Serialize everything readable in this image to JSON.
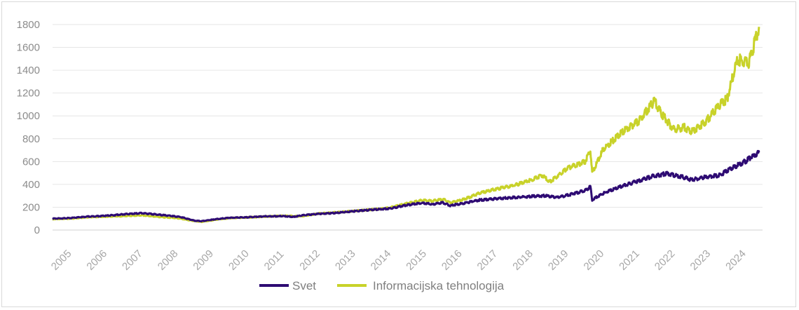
{
  "chart_data": {
    "type": "line",
    "title": "",
    "xlabel": "",
    "ylabel": "",
    "ylim": [
      0,
      1800
    ],
    "yticks": [
      0,
      200,
      400,
      600,
      800,
      1000,
      1200,
      1400,
      1600,
      1800
    ],
    "xlim": [
      2005,
      2025
    ],
    "xticks": [
      "2005",
      "2006",
      "2007",
      "2008",
      "2009",
      "2010",
      "2011",
      "2012",
      "2013",
      "2014",
      "2015",
      "2016",
      "2017",
      "2018",
      "2019",
      "2020",
      "2021",
      "2022",
      "2023",
      "2024"
    ],
    "grid": "horizontal",
    "legend_position": "bottom",
    "series": [
      {
        "name": "Svet",
        "color": "#2e0b73",
        "x": [
          2005.0,
          2005.5,
          2006.0,
          2006.5,
          2007.0,
          2007.5,
          2007.8,
          2008.2,
          2008.6,
          2009.0,
          2009.2,
          2009.6,
          2010.0,
          2010.5,
          2011.0,
          2011.5,
          2011.8,
          2012.0,
          2012.5,
          2013.0,
          2013.5,
          2014.0,
          2014.5,
          2015.0,
          2015.4,
          2015.7,
          2016.0,
          2016.2,
          2016.6,
          2017.0,
          2017.5,
          2018.0,
          2018.5,
          2018.9,
          2019.2,
          2019.5,
          2020.0,
          2020.15,
          2020.2,
          2020.5,
          2021.0,
          2021.5,
          2021.9,
          2022.3,
          2022.8,
          2023.0,
          2023.5,
          2023.8,
          2024.0,
          2024.5,
          2024.9
        ],
        "values": [
          100,
          105,
          118,
          125,
          138,
          148,
          140,
          128,
          115,
          82,
          78,
          95,
          108,
          112,
          120,
          122,
          115,
          128,
          142,
          150,
          165,
          178,
          188,
          220,
          238,
          225,
          240,
          215,
          235,
          262,
          275,
          285,
          295,
          300,
          285,
          305,
          345,
          380,
          265,
          320,
          380,
          430,
          470,
          495,
          460,
          440,
          470,
          480,
          520,
          600,
          680
        ]
      },
      {
        "name": "Informacijska tehnologija",
        "color": "#c8d22a",
        "x": [
          2005.0,
          2005.5,
          2006.0,
          2006.5,
          2007.0,
          2007.5,
          2008.0,
          2008.5,
          2009.0,
          2009.2,
          2009.6,
          2010.0,
          2010.5,
          2011.0,
          2011.5,
          2012.0,
          2012.5,
          2013.0,
          2013.5,
          2014.0,
          2014.5,
          2015.0,
          2015.4,
          2015.7,
          2016.0,
          2016.2,
          2016.6,
          2017.0,
          2017.5,
          2018.0,
          2018.5,
          2018.8,
          2019.0,
          2019.5,
          2020.0,
          2020.15,
          2020.2,
          2020.5,
          2021.0,
          2021.5,
          2021.95,
          2022.2,
          2022.5,
          2022.8,
          2023.0,
          2023.4,
          2023.8,
          2024.0,
          2024.3,
          2024.6,
          2024.9
        ],
        "values": [
          95,
          100,
          112,
          118,
          122,
          130,
          115,
          105,
          78,
          72,
          90,
          105,
          110,
          118,
          125,
          120,
          145,
          155,
          168,
          180,
          195,
          235,
          260,
          255,
          270,
          240,
          270,
          320,
          360,
          390,
          440,
          480,
          420,
          540,
          600,
          700,
          500,
          700,
          850,
          950,
          1130,
          1000,
          880,
          900,
          860,
          950,
          1100,
          1150,
          1500,
          1450,
          1780
        ]
      }
    ]
  }
}
